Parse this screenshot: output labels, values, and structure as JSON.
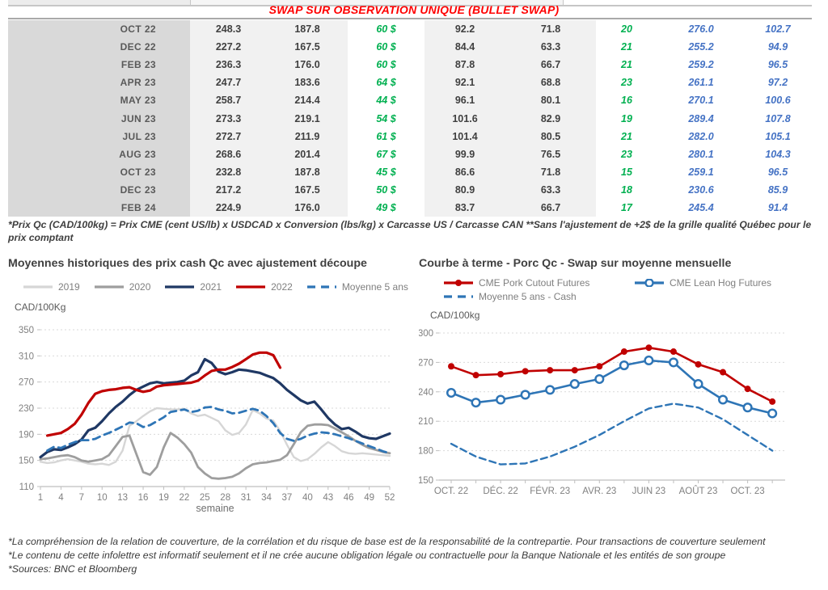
{
  "page": {
    "title": "SWAP SUR OBSERVATION UNIQUE (BULLET SWAP)",
    "table_footnote": "*Prix Qc (CAD/100kg) = Prix CME (cent US/lb) x USDCAD x Conversion (lbs/kg) x Carcasse US / Carcasse CAN **Sans l'ajustement de +2$ de la grille qualité Québec pour le prix comptant",
    "footer_lines": [
      "*La compréhension de la relation de couverture, de la corrélation et du risque de base est de la responsabilité de la contrepartie. Pour transactions de couverture seulement",
      "*Le contenu de cette infolettre est informatif seulement et il ne crée aucune obligation légale ou contractuelle pour la Banque Nationale et les entités de son groupe",
      "*Sources: BNC et Bloomberg"
    ]
  },
  "colors": {
    "title_red": "#FF0000",
    "table_green": "#00B050",
    "table_blue": "#4472C4",
    "month_col_bg": "#D9D9D9",
    "value_band_bg": "#F1F1F1"
  },
  "table": {
    "rows": [
      {
        "cells": [
          "OCT 22",
          "248.3",
          "187.8",
          "60 $",
          "92.2",
          "71.8",
          "20",
          "276.0",
          "102.7"
        ]
      },
      {
        "cells": [
          "DEC 22",
          "227.2",
          "167.5",
          "60 $",
          "84.4",
          "63.3",
          "21",
          "255.2",
          "94.9"
        ]
      },
      {
        "cells": [
          "FEB 23",
          "236.3",
          "176.0",
          "60 $",
          "87.8",
          "66.7",
          "21",
          "259.2",
          "96.5"
        ]
      },
      {
        "cells": [
          "APR 23",
          "247.7",
          "183.6",
          "64 $",
          "92.1",
          "68.8",
          "23",
          "261.1",
          "97.2"
        ]
      },
      {
        "cells": [
          "MAY 23",
          "258.7",
          "214.4",
          "44 $",
          "96.1",
          "80.1",
          "16",
          "270.1",
          "100.6"
        ]
      },
      {
        "cells": [
          "JUN 23",
          "273.3",
          "219.1",
          "54 $",
          "101.6",
          "82.9",
          "19",
          "289.4",
          "107.8"
        ]
      },
      {
        "cells": [
          "JUL 23",
          "272.7",
          "211.9",
          "61 $",
          "101.4",
          "80.5",
          "21",
          "282.0",
          "105.1"
        ]
      },
      {
        "cells": [
          "AUG 23",
          "268.6",
          "201.4",
          "67 $",
          "99.9",
          "76.5",
          "23",
          "280.1",
          "104.3"
        ]
      },
      {
        "cells": [
          "OCT 23",
          "232.8",
          "187.8",
          "45 $",
          "86.6",
          "71.8",
          "15",
          "259.1",
          "96.5"
        ]
      },
      {
        "cells": [
          "DEC 23",
          "217.2",
          "167.5",
          "50 $",
          "80.9",
          "63.3",
          "18",
          "230.6",
          "85.9"
        ]
      },
      {
        "cells": [
          "FEB 24",
          "224.9",
          "176.0",
          "49 $",
          "83.7",
          "66.7",
          "17",
          "245.4",
          "91.4"
        ]
      }
    ]
  },
  "chart_data": [
    {
      "type": "line",
      "title": "Moyennes historiques des prix cash Qc avec ajustement découpe",
      "ylabel": "CAD/100Kg",
      "xlabel": "semaine",
      "xlim": [
        1,
        52
      ],
      "ylim": [
        110,
        350
      ],
      "yticks": [
        110,
        150,
        190,
        230,
        270,
        310,
        350
      ],
      "xticks": [
        1,
        4,
        7,
        10,
        13,
        16,
        19,
        22,
        25,
        28,
        31,
        34,
        37,
        40,
        43,
        46,
        49,
        52
      ],
      "grid": true,
      "legend_position": "top",
      "series": [
        {
          "name": "2019",
          "color": "#D6D6D6",
          "dash": false,
          "width": 2.4,
          "start_x": 1,
          "values": [
            148,
            146,
            147,
            150,
            152,
            150,
            148,
            145,
            144,
            145,
            143,
            148,
            165,
            203,
            210,
            218,
            225,
            230,
            229,
            228,
            228,
            229,
            222,
            218,
            220,
            215,
            210,
            196,
            189,
            192,
            205,
            227,
            222,
            214,
            211,
            195,
            174,
            155,
            149,
            152,
            160,
            170,
            178,
            172,
            164,
            161,
            160,
            161,
            160,
            159,
            158,
            157
          ]
        },
        {
          "name": "2020",
          "color": "#9E9E9E",
          "dash": false,
          "width": 2.8,
          "start_x": 1,
          "values": [
            152,
            153,
            155,
            157,
            158,
            155,
            150,
            148,
            150,
            152,
            158,
            172,
            186,
            188,
            160,
            132,
            128,
            140,
            170,
            192,
            185,
            175,
            162,
            140,
            130,
            123,
            122,
            123,
            125,
            130,
            138,
            144,
            146,
            147,
            149,
            151,
            158,
            175,
            193,
            203,
            205,
            205,
            204,
            199,
            193,
            187,
            180,
            174,
            169,
            166,
            163,
            161
          ]
        },
        {
          "name": "2021",
          "color": "#1F3864",
          "dash": false,
          "width": 3.2,
          "start_x": 1,
          "values": [
            155,
            163,
            167,
            166,
            170,
            175,
            182,
            196,
            200,
            210,
            222,
            232,
            240,
            250,
            258,
            263,
            268,
            270,
            268,
            269,
            270,
            272,
            280,
            285,
            305,
            299,
            286,
            282,
            285,
            289,
            288,
            286,
            284,
            280,
            276,
            268,
            258,
            250,
            242,
            237,
            240,
            228,
            215,
            205,
            198,
            200,
            194,
            187,
            184,
            183,
            187,
            191
          ]
        },
        {
          "name": "2022",
          "color": "#C00000",
          "dash": false,
          "width": 3.2,
          "start_x": 2,
          "values": [
            188,
            190,
            192,
            198,
            206,
            220,
            238,
            252,
            256,
            258,
            259,
            261,
            262,
            258,
            255,
            257,
            263,
            265,
            266,
            267,
            268,
            269,
            272,
            280,
            287,
            289,
            289,
            293,
            298,
            305,
            312,
            315,
            315,
            311,
            292
          ]
        },
        {
          "name": "Moyenne 5 ans",
          "color": "#2E75B6",
          "dash": true,
          "width": 2.8,
          "start_x": 2,
          "values": [
            165,
            171,
            169,
            174,
            178,
            181,
            181,
            183,
            188,
            192,
            197,
            202,
            208,
            207,
            201,
            204,
            210,
            216,
            224,
            226,
            228,
            224,
            226,
            231,
            232,
            228,
            226,
            222,
            223,
            226,
            229,
            226,
            218,
            207,
            192,
            183,
            180,
            183,
            188,
            191,
            193,
            192,
            190,
            187,
            184,
            180,
            176,
            172,
            168,
            164,
            161
          ]
        }
      ]
    },
    {
      "type": "line",
      "title": "Courbe à terme - Porc Qc - Swap sur moyenne mensuelle",
      "ylabel": "CAD/100kg",
      "xlabel": "",
      "ylim": [
        150,
        300
      ],
      "yticks": [
        150,
        180,
        210,
        240,
        270,
        300
      ],
      "x_count": 14,
      "xtick_labels": [
        "OCT. 22",
        "DÉC. 22",
        "FÉVR. 23",
        "AVR. 23",
        "JUIN 23",
        "AOÛT 23",
        "OCT. 23"
      ],
      "xtick_label_indices": [
        0,
        2,
        4,
        6,
        8,
        10,
        12
      ],
      "grid": true,
      "legend_position": "top",
      "series": [
        {
          "name": "CME Pork Cutout Futures",
          "color": "#C00000",
          "dash": false,
          "width": 2.6,
          "marker": "filled",
          "values": [
            266,
            257,
            258,
            261,
            262,
            262,
            266,
            281,
            285,
            281,
            268,
            260,
            243,
            230
          ]
        },
        {
          "name": "CME Lean Hog Futures",
          "color": "#2E75B6",
          "dash": false,
          "width": 2.6,
          "marker": "open",
          "values": [
            239,
            229,
            232,
            237,
            242,
            248,
            253,
            267,
            272,
            270,
            248,
            232,
            224,
            218
          ]
        },
        {
          "name": "Moyenne 5 ans - Cash",
          "color": "#2E75B6",
          "dash": true,
          "width": 2.4,
          "marker": "none",
          "values": [
            187,
            174,
            166,
            167,
            174,
            184,
            196,
            210,
            223,
            228,
            224,
            212,
            196,
            180
          ]
        }
      ]
    }
  ]
}
